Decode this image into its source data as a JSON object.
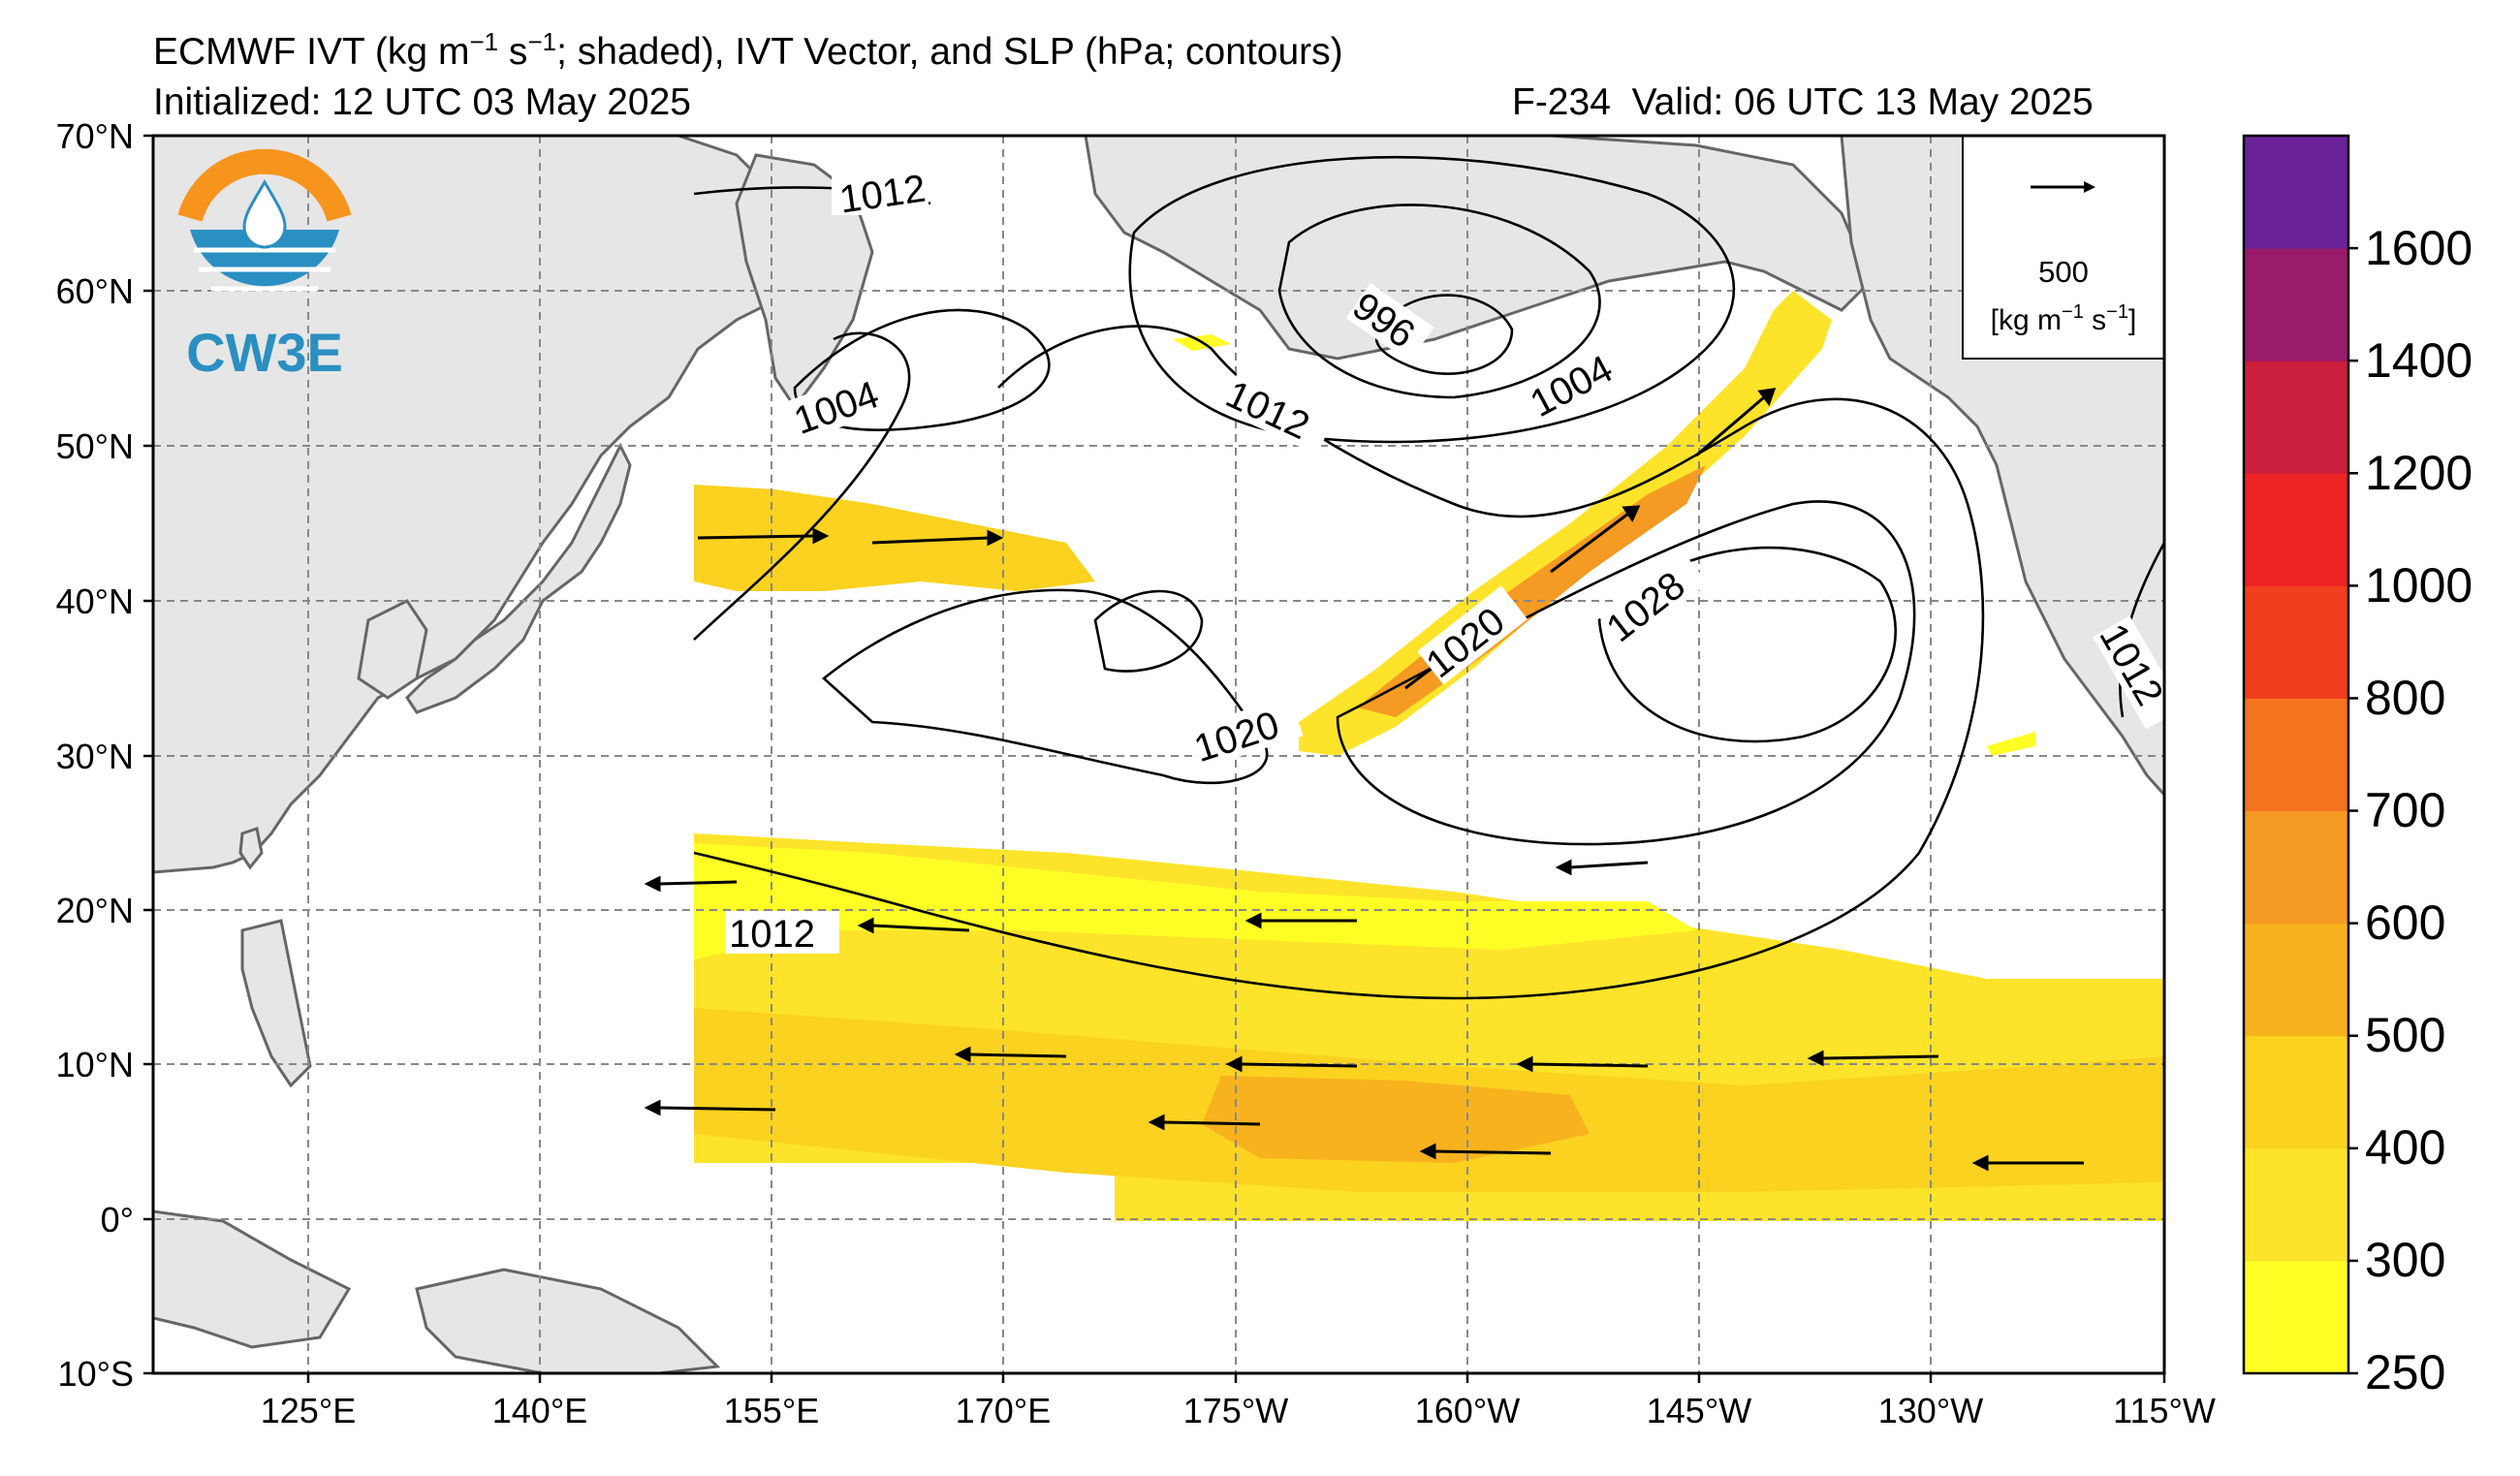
{
  "header": {
    "title_prefix": "ECMWF IVT (kg m",
    "title_exp1": "−1",
    "title_mid": " s",
    "title_exp2": "−1",
    "title_suffix": "; shaded), IVT Vector, and SLP (hPa; contours)",
    "initialized": "Initialized: 12 UTC 03 May 2025",
    "forecast_hour": "F-234",
    "valid": "Valid: 06 UTC 13 May 2025"
  },
  "logo": {
    "text": "CW3E",
    "colors": {
      "ring": "#F7941D",
      "water": "#2A8FC1"
    },
    "icon": "water-drop-logo-icon"
  },
  "map": {
    "lat_labels": [
      "70°N",
      "60°N",
      "50°N",
      "40°N",
      "30°N",
      "20°N",
      "10°N",
      "0°",
      "10°S"
    ],
    "lon_labels": [
      "125°E",
      "140°E",
      "155°E",
      "170°E",
      "175°W",
      "160°W",
      "145°W",
      "130°W",
      "115°W"
    ],
    "land_color": "#E6E6E6",
    "coast_color": "#666666",
    "grid_color": "#888888",
    "slp_contour_labels": [
      "1012",
      "996",
      "1004",
      "1012",
      "1004",
      "1020",
      "1020",
      "1028",
      "1012",
      "1012"
    ]
  },
  "vector_key": {
    "value": "500",
    "units_prefix": "[kg m",
    "units_exp1": "−1",
    "units_mid": " s",
    "units_exp2": "−1",
    "units_suffix": "]"
  },
  "colorbar": {
    "tick_labels": [
      "250",
      "300",
      "400",
      "500",
      "600",
      "700",
      "800",
      "1000",
      "1200",
      "1400",
      "1600"
    ],
    "colors": [
      "#FEFE25",
      "#FDE42A",
      "#FBD220",
      "#F7B21E",
      "#F59A22",
      "#F5731F",
      "#F13F1E",
      "#EE2323",
      "#CC1F3E",
      "#9A1A6B",
      "#6A2299"
    ]
  }
}
